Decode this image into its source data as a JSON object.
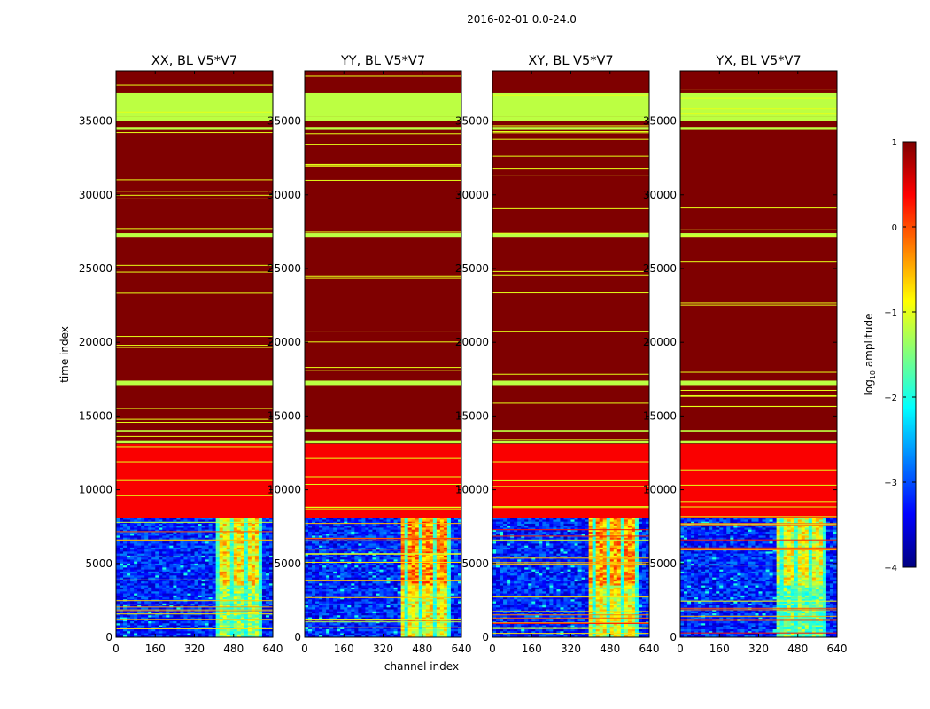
{
  "figure": {
    "suptitle": "2016-02-01 0.0-24.0",
    "xlabel": "channel index",
    "ylabel": "time index"
  },
  "colormap": [
    "#00007f",
    "#0000ff",
    "#007fff",
    "#00ffff",
    "#7fff7f",
    "#ffff00",
    "#ff7f00",
    "#ff0000",
    "#7f0000"
  ],
  "chart_data": {
    "type": "heatmap",
    "title": "2016-02-01 0.0-24.0",
    "xlabel": "channel index",
    "ylabel": "time index",
    "xlim": [
      0,
      640
    ],
    "ylim": [
      0,
      38400
    ],
    "x_ticks": [
      0,
      160,
      320,
      480,
      640
    ],
    "y_ticks": [
      0,
      5000,
      10000,
      15000,
      20000,
      25000,
      30000,
      35000
    ],
    "colorbar": {
      "label_prefix": "log",
      "label_sub": "10",
      "label_suffix": " amplitude",
      "range": [
        -4,
        1
      ],
      "ticks": [
        -4,
        -3,
        -2,
        -1,
        0,
        1
      ],
      "tick_labels": [
        "−4",
        "−3",
        "−2",
        "−1",
        "0",
        "1"
      ]
    },
    "panels": [
      {
        "name": "xx",
        "title": "XX, BL V5*V7",
        "hot_band": [
          410,
          600
        ],
        "hot_level": -0.8
      },
      {
        "name": "yy",
        "title": "YY, BL V5*V7",
        "hot_band": [
          400,
          600
        ],
        "hot_level": -0.3
      },
      {
        "name": "xy",
        "title": "XY, BL V5*V7",
        "hot_band": [
          400,
          600
        ],
        "hot_level": -0.4
      },
      {
        "name": "yx",
        "title": "YX, BL V5*V7",
        "hot_band": [
          400,
          600
        ],
        "hot_level": -1.0
      }
    ],
    "time_bands": [
      {
        "from": 8100,
        "to": 13100,
        "log_amp": 0.4
      },
      {
        "from": 13100,
        "to": 36900,
        "log_amp": 1.0
      },
      {
        "from": 36900,
        "to": 38400,
        "log_amp": 1.0
      }
    ],
    "green_bands": [
      [
        13150,
        13300
      ],
      [
        13950,
        14050
      ],
      [
        17100,
        17400
      ],
      [
        27150,
        27400
      ],
      [
        34400,
        34600
      ],
      [
        35000,
        35300
      ],
      [
        35300,
        36900
      ]
    ],
    "noise_region": {
      "from": 0,
      "to": 8100,
      "base_log_amp": -3.2
    }
  }
}
